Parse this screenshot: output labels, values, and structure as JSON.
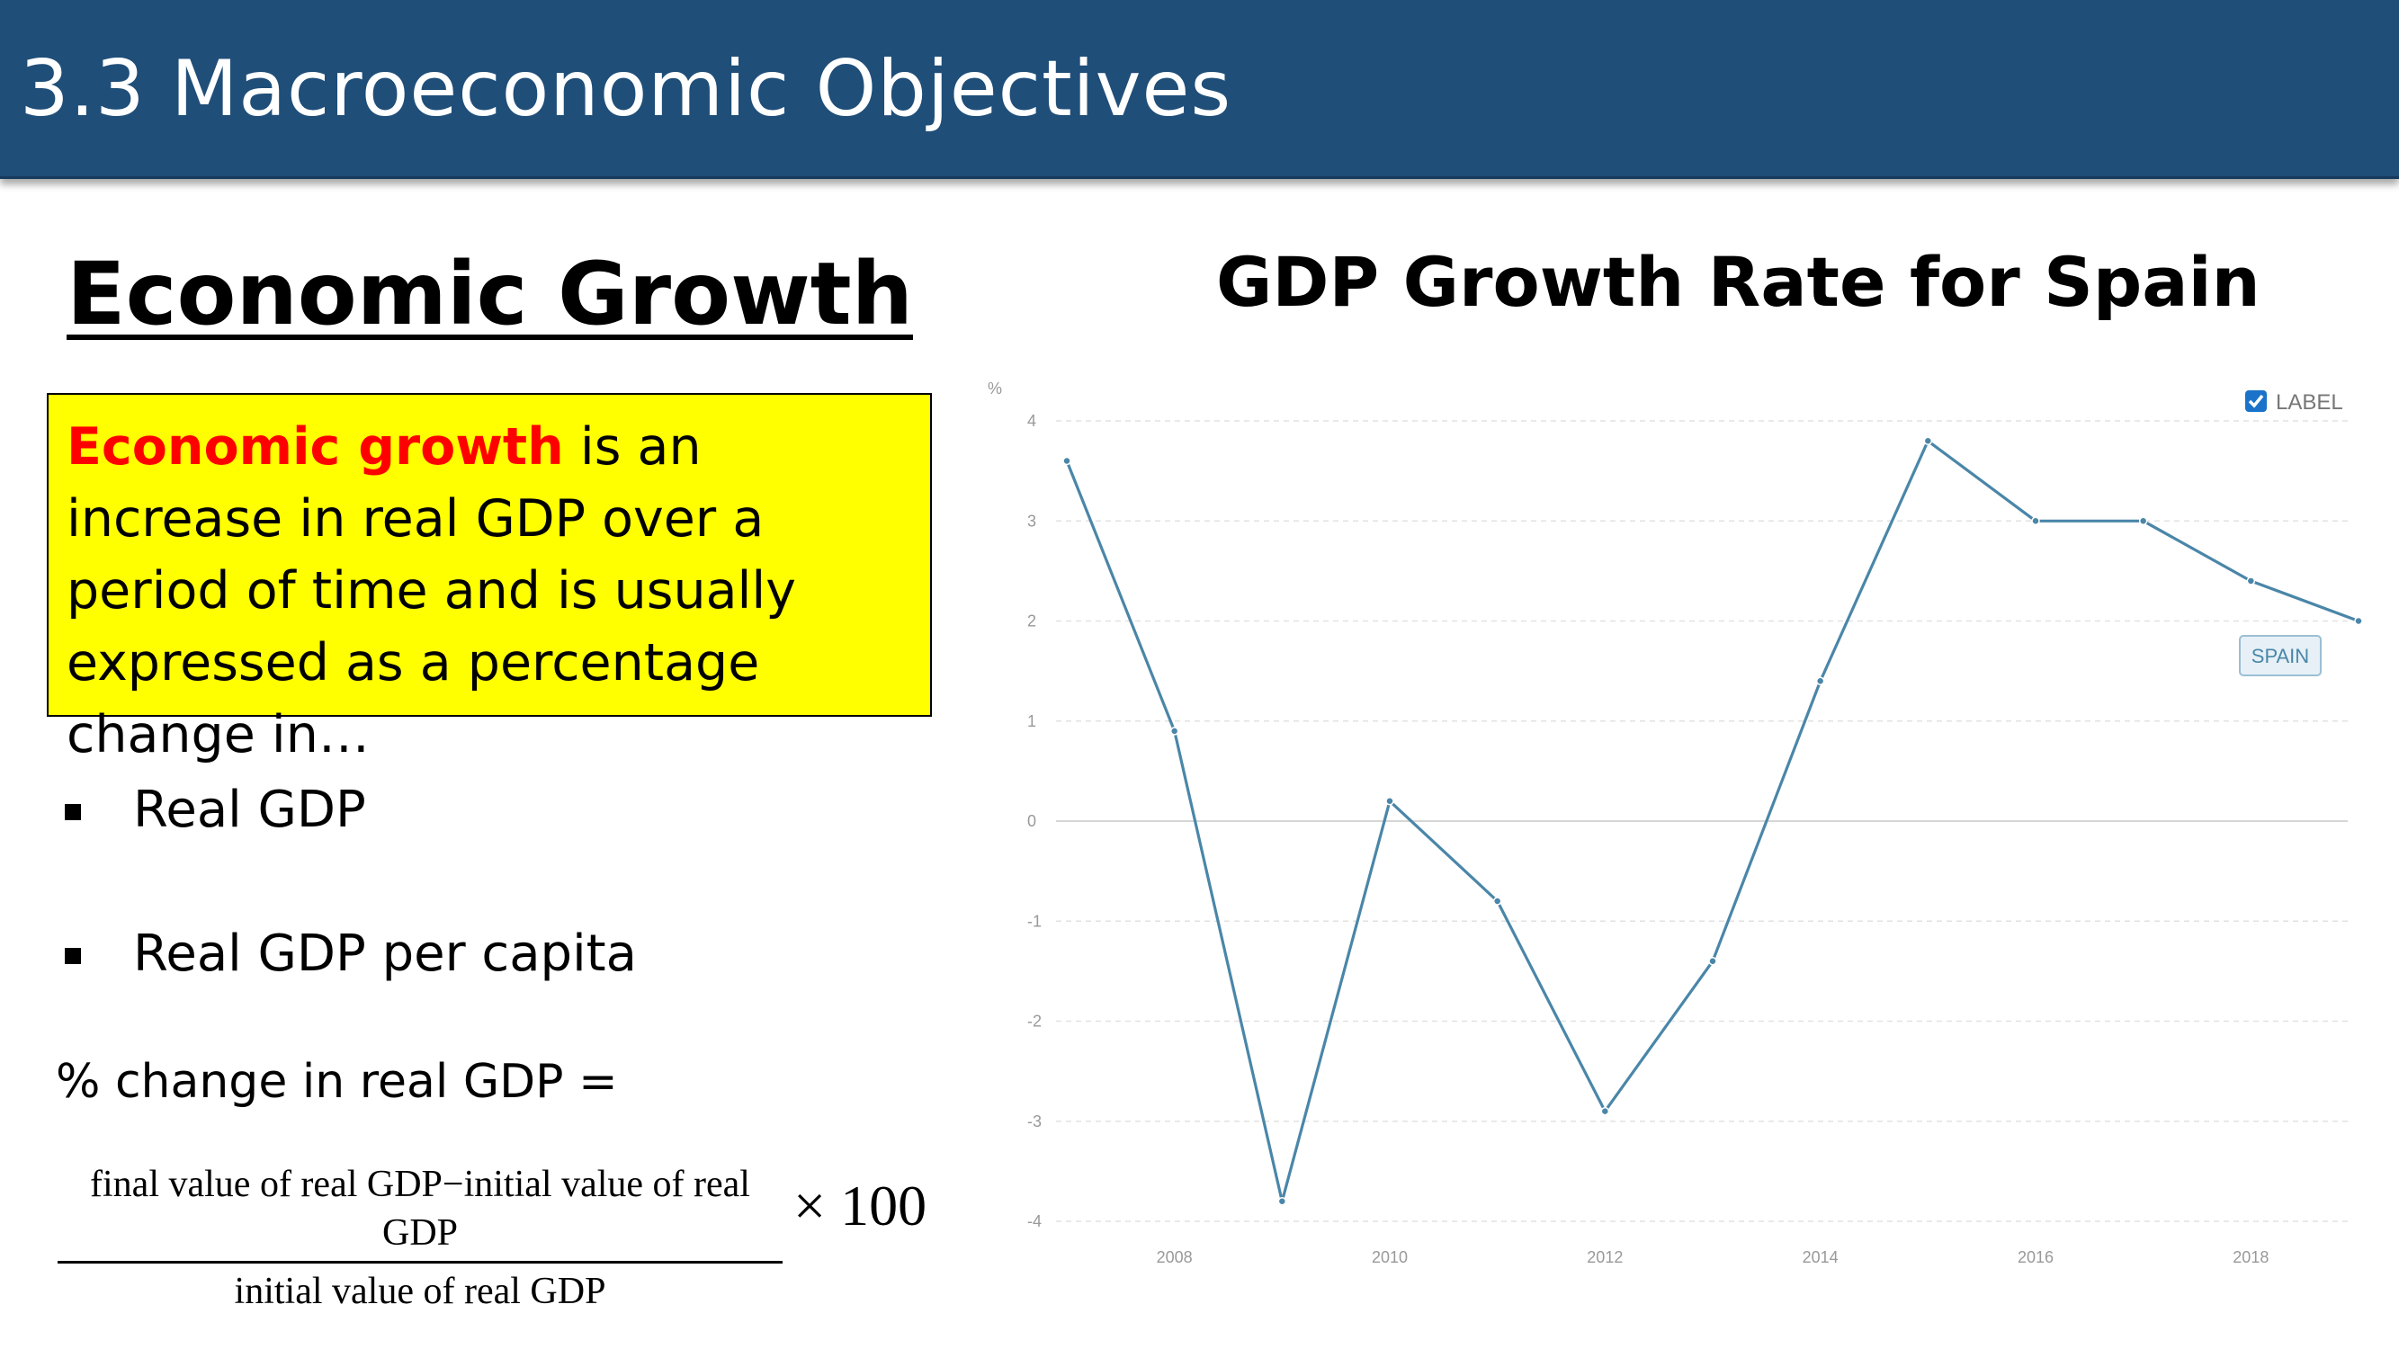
{
  "header": {
    "title": "3.3 Macroeconomic Objectives"
  },
  "section": {
    "heading": "Economic Growth"
  },
  "definition": {
    "term": "Economic growth",
    "text": " is an increase in real GDP over a period of time and is usually expressed as a percentage change in…"
  },
  "bullets": [
    "Real GDP",
    "Real GDP per capita"
  ],
  "formula": {
    "label": "% change in real GDP =",
    "numerator": "final value of real GDP−initial value of real GDP",
    "denominator": "initial value of real GDP",
    "multiplier": "× 100"
  },
  "chart_data": {
    "type": "line",
    "title": "GDP Growth Rate for Spain",
    "ylabel": "%",
    "ylim": [
      -4,
      4
    ],
    "y_ticks": [
      4,
      3,
      2,
      1,
      0,
      -1,
      -2,
      -3,
      -4
    ],
    "x_ticks": [
      2008,
      2010,
      2012,
      2014,
      2016,
      2018
    ],
    "xlim": [
      2007,
      2019
    ],
    "grid": true,
    "legend": {
      "label": "LABEL",
      "checked": true,
      "placement": "top-right"
    },
    "series": [
      {
        "name": "SPAIN",
        "color": "#4a86a8",
        "x": [
          2007,
          2008,
          2009,
          2010,
          2011,
          2012,
          2013,
          2014,
          2015,
          2016,
          2017,
          2018,
          2019
        ],
        "values": [
          3.6,
          0.9,
          -3.8,
          0.2,
          -0.8,
          -2.9,
          -1.4,
          1.4,
          3.8,
          3.0,
          3.0,
          2.4,
          2.0
        ]
      }
    ]
  },
  "colors": {
    "header_bg": "#1f4e79",
    "definition_bg": "#ffff00",
    "term": "#ff0000",
    "series": "#4a86a8",
    "checkbox": "#1a73c8"
  }
}
